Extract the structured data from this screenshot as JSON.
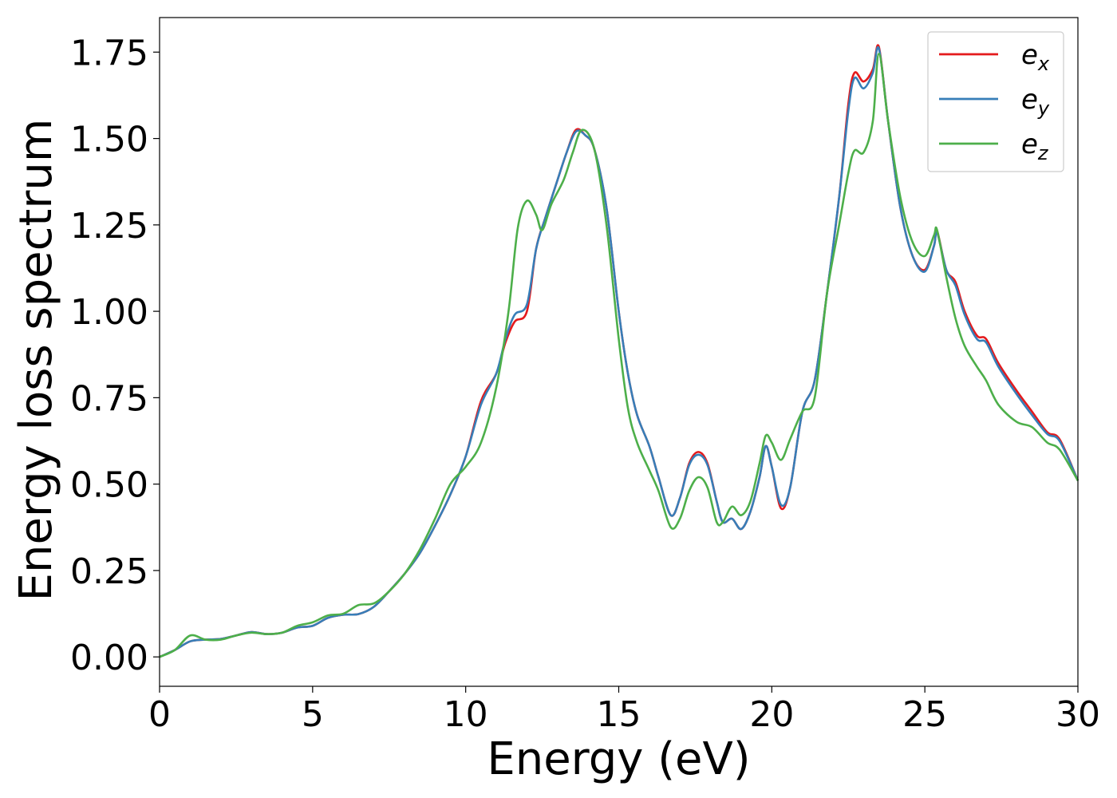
{
  "chart_data": {
    "type": "line",
    "xlabel": "Energy (eV)",
    "ylabel": "Energy loss spectrum",
    "xlim": [
      0,
      30
    ],
    "ylim": [
      -0.085,
      1.85
    ],
    "x_ticks": [
      0,
      5,
      10,
      15,
      20,
      25,
      30
    ],
    "x_tick_labels": [
      "0",
      "5",
      "10",
      "15",
      "20",
      "25",
      "30"
    ],
    "y_ticks": [
      0.0,
      0.25,
      0.5,
      0.75,
      1.0,
      1.25,
      1.5,
      1.75
    ],
    "y_tick_labels": [
      "0.00",
      "0.25",
      "0.50",
      "0.75",
      "1.00",
      "1.25",
      "1.50",
      "1.75"
    ],
    "grid": false,
    "legend_position": "top-right",
    "series": [
      {
        "name": "e_x",
        "label_base": "e",
        "label_sub": "x",
        "color": "#e41a1c",
        "points": [
          [
            0,
            0.0
          ],
          [
            0.5,
            0.02
          ],
          [
            1.0,
            0.045
          ],
          [
            1.5,
            0.05
          ],
          [
            2.0,
            0.052
          ],
          [
            2.5,
            0.062
          ],
          [
            3.0,
            0.072
          ],
          [
            3.5,
            0.066
          ],
          [
            4.0,
            0.07
          ],
          [
            4.5,
            0.085
          ],
          [
            5.0,
            0.09
          ],
          [
            5.5,
            0.113
          ],
          [
            6.0,
            0.122
          ],
          [
            6.5,
            0.124
          ],
          [
            7.0,
            0.145
          ],
          [
            7.5,
            0.19
          ],
          [
            8.0,
            0.24
          ],
          [
            8.5,
            0.3
          ],
          [
            9.0,
            0.38
          ],
          [
            9.5,
            0.47
          ],
          [
            10.0,
            0.58
          ],
          [
            10.5,
            0.74
          ],
          [
            11.0,
            0.82
          ],
          [
            11.3,
            0.91
          ],
          [
            11.6,
            0.97
          ],
          [
            12.0,
            1.0
          ],
          [
            12.3,
            1.18
          ],
          [
            12.6,
            1.27
          ],
          [
            13.0,
            1.38
          ],
          [
            13.3,
            1.46
          ],
          [
            13.6,
            1.525
          ],
          [
            13.9,
            1.51
          ],
          [
            14.2,
            1.47
          ],
          [
            14.6,
            1.3
          ],
          [
            15.0,
            1.0
          ],
          [
            15.3,
            0.82
          ],
          [
            15.6,
            0.7
          ],
          [
            16.0,
            0.61
          ],
          [
            16.3,
            0.52
          ],
          [
            16.7,
            0.41
          ],
          [
            17.0,
            0.46
          ],
          [
            17.3,
            0.56
          ],
          [
            17.6,
            0.593
          ],
          [
            17.9,
            0.56
          ],
          [
            18.2,
            0.45
          ],
          [
            18.4,
            0.39
          ],
          [
            18.7,
            0.4
          ],
          [
            19.0,
            0.37
          ],
          [
            19.3,
            0.42
          ],
          [
            19.6,
            0.52
          ],
          [
            19.8,
            0.61
          ],
          [
            20.0,
            0.55
          ],
          [
            20.3,
            0.43
          ],
          [
            20.6,
            0.49
          ],
          [
            21.0,
            0.71
          ],
          [
            21.4,
            0.8
          ],
          [
            21.8,
            1.05
          ],
          [
            22.2,
            1.33
          ],
          [
            22.5,
            1.6
          ],
          [
            22.7,
            1.69
          ],
          [
            23.0,
            1.665
          ],
          [
            23.3,
            1.7
          ],
          [
            23.5,
            1.765
          ],
          [
            23.8,
            1.55
          ],
          [
            24.2,
            1.3
          ],
          [
            24.6,
            1.16
          ],
          [
            25.0,
            1.12
          ],
          [
            25.3,
            1.19
          ],
          [
            25.4,
            1.232
          ],
          [
            25.7,
            1.12
          ],
          [
            26.0,
            1.085
          ],
          [
            26.3,
            1.0
          ],
          [
            26.7,
            0.93
          ],
          [
            27.0,
            0.92
          ],
          [
            27.4,
            0.85
          ],
          [
            28.0,
            0.77
          ],
          [
            28.5,
            0.71
          ],
          [
            29.0,
            0.65
          ],
          [
            29.4,
            0.63
          ],
          [
            30.0,
            0.51
          ]
        ]
      },
      {
        "name": "e_y",
        "label_base": "e",
        "label_sub": "y",
        "color": "#377eb8",
        "points": [
          [
            0,
            0.0
          ],
          [
            0.5,
            0.02
          ],
          [
            1.0,
            0.045
          ],
          [
            1.5,
            0.05
          ],
          [
            2.0,
            0.052
          ],
          [
            2.5,
            0.062
          ],
          [
            3.0,
            0.072
          ],
          [
            3.5,
            0.066
          ],
          [
            4.0,
            0.07
          ],
          [
            4.5,
            0.085
          ],
          [
            5.0,
            0.09
          ],
          [
            5.5,
            0.113
          ],
          [
            6.0,
            0.122
          ],
          [
            6.5,
            0.124
          ],
          [
            7.0,
            0.145
          ],
          [
            7.5,
            0.19
          ],
          [
            8.0,
            0.24
          ],
          [
            8.5,
            0.3
          ],
          [
            9.0,
            0.38
          ],
          [
            9.5,
            0.47
          ],
          [
            10.0,
            0.58
          ],
          [
            10.5,
            0.73
          ],
          [
            11.0,
            0.82
          ],
          [
            11.3,
            0.92
          ],
          [
            11.6,
            0.99
          ],
          [
            12.0,
            1.02
          ],
          [
            12.3,
            1.18
          ],
          [
            12.6,
            1.27
          ],
          [
            13.0,
            1.38
          ],
          [
            13.3,
            1.46
          ],
          [
            13.6,
            1.52
          ],
          [
            13.9,
            1.51
          ],
          [
            14.2,
            1.47
          ],
          [
            14.6,
            1.3
          ],
          [
            15.0,
            1.0
          ],
          [
            15.3,
            0.82
          ],
          [
            15.6,
            0.7
          ],
          [
            16.0,
            0.61
          ],
          [
            16.3,
            0.52
          ],
          [
            16.7,
            0.41
          ],
          [
            17.0,
            0.46
          ],
          [
            17.3,
            0.555
          ],
          [
            17.6,
            0.585
          ],
          [
            17.9,
            0.555
          ],
          [
            18.2,
            0.45
          ],
          [
            18.4,
            0.39
          ],
          [
            18.7,
            0.4
          ],
          [
            19.0,
            0.37
          ],
          [
            19.3,
            0.42
          ],
          [
            19.6,
            0.52
          ],
          [
            19.8,
            0.61
          ],
          [
            20.0,
            0.55
          ],
          [
            20.3,
            0.44
          ],
          [
            20.6,
            0.49
          ],
          [
            21.0,
            0.71
          ],
          [
            21.4,
            0.8
          ],
          [
            21.8,
            1.05
          ],
          [
            22.2,
            1.33
          ],
          [
            22.5,
            1.58
          ],
          [
            22.7,
            1.675
          ],
          [
            23.0,
            1.645
          ],
          [
            23.3,
            1.69
          ],
          [
            23.5,
            1.76
          ],
          [
            23.8,
            1.55
          ],
          [
            24.2,
            1.3
          ],
          [
            24.6,
            1.16
          ],
          [
            25.0,
            1.115
          ],
          [
            25.3,
            1.19
          ],
          [
            25.4,
            1.228
          ],
          [
            25.7,
            1.12
          ],
          [
            26.0,
            1.075
          ],
          [
            26.3,
            0.99
          ],
          [
            26.7,
            0.92
          ],
          [
            27.0,
            0.91
          ],
          [
            27.4,
            0.84
          ],
          [
            28.0,
            0.76
          ],
          [
            28.5,
            0.7
          ],
          [
            29.0,
            0.645
          ],
          [
            29.4,
            0.625
          ],
          [
            30.0,
            0.51
          ]
        ]
      },
      {
        "name": "e_z",
        "label_base": "e",
        "label_sub": "z",
        "color": "#4daf4a",
        "points": [
          [
            0,
            0.0
          ],
          [
            0.5,
            0.02
          ],
          [
            1.0,
            0.062
          ],
          [
            1.5,
            0.05
          ],
          [
            2.0,
            0.05
          ],
          [
            2.5,
            0.062
          ],
          [
            3.0,
            0.07
          ],
          [
            3.5,
            0.066
          ],
          [
            4.0,
            0.07
          ],
          [
            4.5,
            0.09
          ],
          [
            5.0,
            0.1
          ],
          [
            5.5,
            0.12
          ],
          [
            6.0,
            0.125
          ],
          [
            6.5,
            0.15
          ],
          [
            7.0,
            0.155
          ],
          [
            7.5,
            0.19
          ],
          [
            8.0,
            0.24
          ],
          [
            8.5,
            0.31
          ],
          [
            9.0,
            0.4
          ],
          [
            9.5,
            0.5
          ],
          [
            10.0,
            0.55
          ],
          [
            10.5,
            0.62
          ],
          [
            11.0,
            0.78
          ],
          [
            11.4,
            1.0
          ],
          [
            11.7,
            1.24
          ],
          [
            12.0,
            1.32
          ],
          [
            12.3,
            1.28
          ],
          [
            12.5,
            1.235
          ],
          [
            12.8,
            1.31
          ],
          [
            13.2,
            1.38
          ],
          [
            13.5,
            1.46
          ],
          [
            13.8,
            1.525
          ],
          [
            14.2,
            1.47
          ],
          [
            14.6,
            1.25
          ],
          [
            15.0,
            0.92
          ],
          [
            15.3,
            0.72
          ],
          [
            15.6,
            0.62
          ],
          [
            16.0,
            0.54
          ],
          [
            16.3,
            0.48
          ],
          [
            16.7,
            0.375
          ],
          [
            17.0,
            0.4
          ],
          [
            17.3,
            0.48
          ],
          [
            17.6,
            0.52
          ],
          [
            17.9,
            0.49
          ],
          [
            18.2,
            0.39
          ],
          [
            18.4,
            0.39
          ],
          [
            18.7,
            0.435
          ],
          [
            19.0,
            0.41
          ],
          [
            19.3,
            0.45
          ],
          [
            19.6,
            0.56
          ],
          [
            19.8,
            0.64
          ],
          [
            20.0,
            0.62
          ],
          [
            20.3,
            0.57
          ],
          [
            20.6,
            0.63
          ],
          [
            21.0,
            0.71
          ],
          [
            21.4,
            0.75
          ],
          [
            21.8,
            1.05
          ],
          [
            22.2,
            1.25
          ],
          [
            22.5,
            1.4
          ],
          [
            22.7,
            1.465
          ],
          [
            23.0,
            1.46
          ],
          [
            23.3,
            1.55
          ],
          [
            23.5,
            1.745
          ],
          [
            23.8,
            1.55
          ],
          [
            24.2,
            1.33
          ],
          [
            24.6,
            1.2
          ],
          [
            25.0,
            1.16
          ],
          [
            25.3,
            1.22
          ],
          [
            25.4,
            1.235
          ],
          [
            25.7,
            1.1
          ],
          [
            26.0,
            0.98
          ],
          [
            26.3,
            0.9
          ],
          [
            26.7,
            0.84
          ],
          [
            27.0,
            0.8
          ],
          [
            27.4,
            0.73
          ],
          [
            28.0,
            0.68
          ],
          [
            28.5,
            0.665
          ],
          [
            29.0,
            0.62
          ],
          [
            29.4,
            0.6
          ],
          [
            30.0,
            0.51
          ]
        ]
      }
    ]
  }
}
